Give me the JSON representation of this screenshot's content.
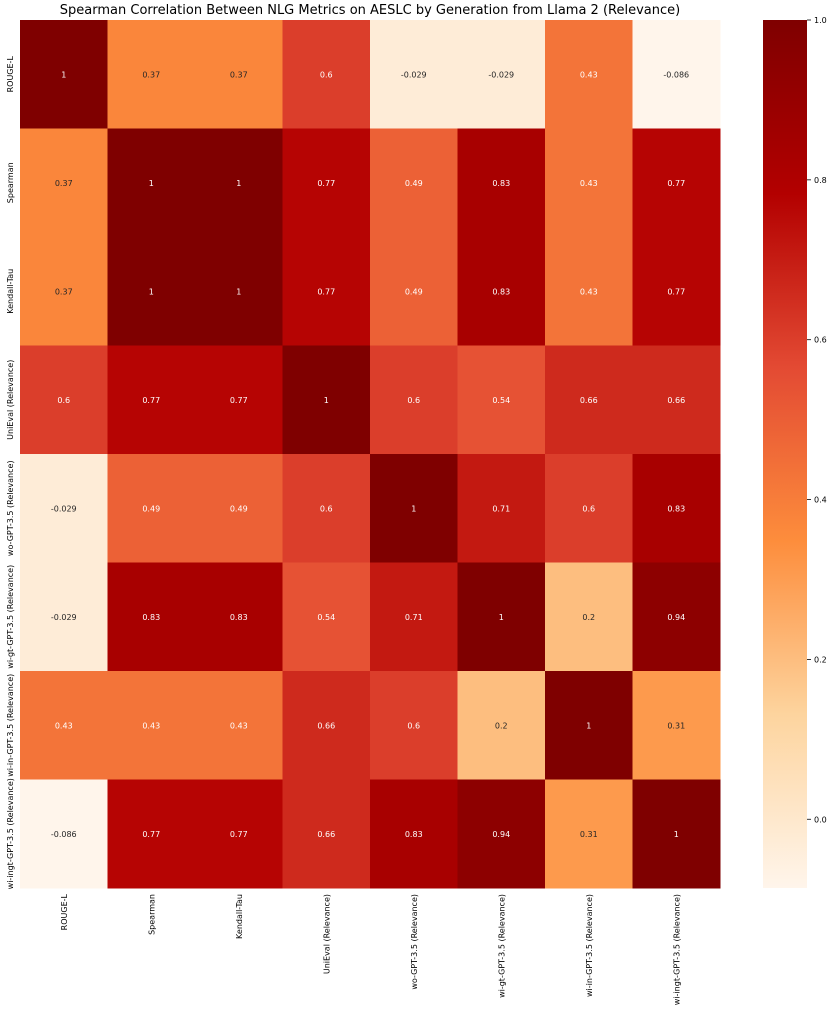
{
  "chart_data": {
    "type": "heatmap",
    "title": "Spearman Correlation Between NLG Metrics on AESLC by Generation from Llama 2 (Relevance)",
    "xlabel": "",
    "ylabel": "",
    "x_categories": [
      "ROUGE-L",
      "Spearman",
      "Kendall-Tau",
      "UniEval (Relevance)",
      "wo-GPT-3.5 (Relevance)",
      "wi-gt-GPT-3.5 (Relevance)",
      "wi-in-GPT-3.5 (Relevance)",
      "wi-ingt-GPT-3.5 (Relevance)"
    ],
    "y_categories": [
      "ROUGE-L",
      "Spearman",
      "Kendall-Tau",
      "UniEval (Relevance)",
      "wo-GPT-3.5 (Relevance)",
      "wi-gt-GPT-3.5 (Relevance)",
      "wi-in-GPT-3.5 (Relevance)",
      "wi-ingt-GPT-3.5 (Relevance)"
    ],
    "values": [
      [
        1,
        0.37,
        0.37,
        0.6,
        -0.029,
        -0.029,
        0.43,
        -0.086
      ],
      [
        0.37,
        1,
        1,
        0.77,
        0.49,
        0.83,
        0.43,
        0.77
      ],
      [
        0.37,
        1,
        1,
        0.77,
        0.49,
        0.83,
        0.43,
        0.77
      ],
      [
        0.6,
        0.77,
        0.77,
        1,
        0.6,
        0.54,
        0.66,
        0.66
      ],
      [
        -0.029,
        0.49,
        0.49,
        0.6,
        1,
        0.71,
        0.6,
        0.83
      ],
      [
        -0.029,
        0.83,
        0.83,
        0.54,
        0.71,
        1,
        0.2,
        0.94
      ],
      [
        0.43,
        0.43,
        0.43,
        0.66,
        0.6,
        0.2,
        1,
        0.31
      ],
      [
        -0.086,
        0.77,
        0.77,
        0.66,
        0.83,
        0.94,
        0.31,
        1
      ]
    ],
    "colormap": "OrRd-like (light cream to dark maroon)",
    "color_stops": [
      "#fff5eb",
      "#fdd49e",
      "#fd8d3c",
      "#e34a33",
      "#b30000",
      "#7f0000"
    ],
    "vmin": -0.086,
    "vmax": 1,
    "colorbar": {
      "ticks": [
        0.0,
        0.2,
        0.4,
        0.6,
        0.8,
        1.0
      ],
      "tick_labels": [
        "0.0",
        "0.2",
        "0.4",
        "0.6",
        "0.8",
        "1.0"
      ],
      "placement": "right"
    },
    "annotations": true,
    "grid": false
  }
}
